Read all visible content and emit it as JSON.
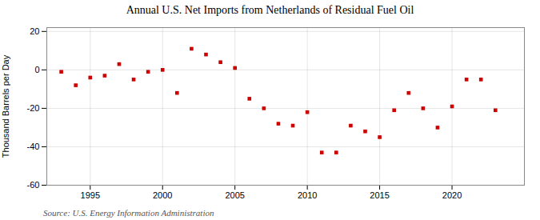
{
  "chart_data": {
    "type": "scatter",
    "title": "Annual U.S. Net Imports from Netherlands of Residual Fuel Oil",
    "ylabel": "Thousand Barrels per Day",
    "source": "Source: U.S. Energy Information Administration",
    "x": [
      1993,
      1994,
      1995,
      1996,
      1997,
      1998,
      1999,
      2000,
      2001,
      2002,
      2003,
      2004,
      2005,
      2006,
      2007,
      2008,
      2009,
      2010,
      2011,
      2012,
      2013,
      2014,
      2015,
      2016,
      2017,
      2018,
      2019,
      2020,
      2021,
      2022,
      2023
    ],
    "values": [
      -1,
      -8,
      -4,
      -3,
      3,
      -5,
      -1,
      0,
      -12,
      11,
      8,
      4,
      1,
      -15,
      -20,
      -28,
      -29,
      -22,
      -43,
      -43,
      -29,
      -32,
      -35,
      -21,
      -12,
      -20,
      -30,
      -19,
      -5,
      -5,
      -21
    ],
    "color": "#cc0000",
    "marker": "square",
    "xlim": [
      1992,
      2025
    ],
    "xticks": [
      1995,
      2000,
      2005,
      2010,
      2015,
      2020
    ],
    "ylim": [
      -60,
      22
    ],
    "yticks": [
      -60,
      -40,
      -20,
      0,
      20
    ],
    "grid": true
  }
}
